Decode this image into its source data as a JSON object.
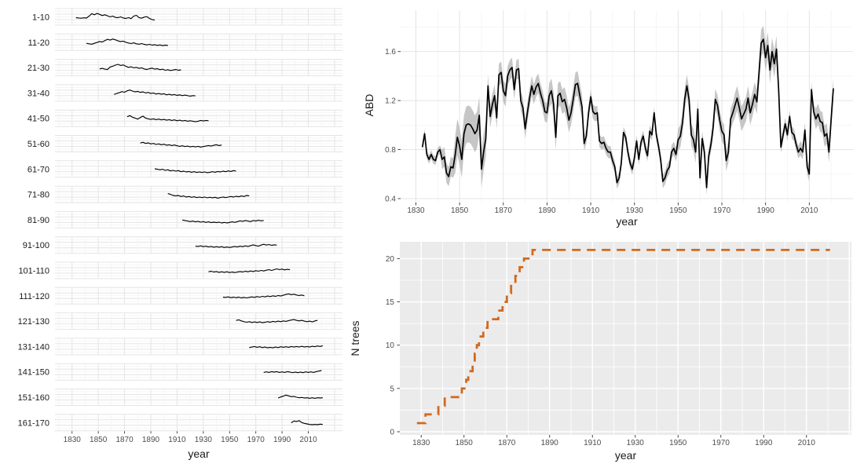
{
  "figure_bg": "#ffffff",
  "palette": {
    "grid_major_on_white": "#e4e4e4",
    "grid_minor_on_white": "#f2f2f2",
    "panel_gray_bg": "#ebebeb",
    "grid_on_gray": "#ffffff",
    "axis_text": "#4d4d4d",
    "tick_mark": "#333333",
    "series_black": "#000000",
    "ribbon_gray": "#b8b8b8",
    "step_orange": "#d2691e"
  },
  "chart_data": [
    {
      "id": "tree-cohort-facets",
      "type": "line",
      "xlabel": "year",
      "x_ticks": [
        1830,
        1850,
        1870,
        1890,
        1910,
        1930,
        1950,
        1970,
        1990,
        2010
      ],
      "x_range": [
        1817,
        2036
      ],
      "facet_labels": [
        "1-10",
        "11-20",
        "21-30",
        "31-40",
        "41-50",
        "51-60",
        "61-70",
        "71-80",
        "81-90",
        "91-100",
        "101-110",
        "111-120",
        "121-130",
        "131-140",
        "141-150",
        "151-160",
        "161-170"
      ],
      "facets": [
        {
          "label": "1-10",
          "start_year": 1833,
          "year_step": 2,
          "values": [
            0.44,
            0.42,
            0.4,
            0.43,
            0.41,
            0.56,
            0.74,
            0.66,
            0.76,
            0.69,
            0.6,
            0.66,
            0.58,
            0.5,
            0.56,
            0.46,
            0.44,
            0.5,
            0.42,
            0.38,
            0.44,
            0.37,
            0.56,
            0.62,
            0.45,
            0.4,
            0.48,
            0.52,
            0.38,
            0.3,
            0.26
          ]
        },
        {
          "label": "11-20",
          "start_year": 1841,
          "year_step": 2,
          "values": [
            0.42,
            0.38,
            0.35,
            0.42,
            0.48,
            0.55,
            0.52,
            0.62,
            0.72,
            0.66,
            0.74,
            0.68,
            0.6,
            0.55,
            0.58,
            0.5,
            0.44,
            0.4,
            0.45,
            0.38,
            0.35,
            0.4,
            0.34,
            0.3,
            0.34,
            0.28,
            0.32,
            0.26,
            0.3,
            0.24,
            0.28,
            0.25
          ]
        },
        {
          "label": "21-30",
          "start_year": 1851,
          "year_step": 2,
          "values": [
            0.4,
            0.44,
            0.38,
            0.35,
            0.55,
            0.6,
            0.68,
            0.74,
            0.66,
            0.7,
            0.6,
            0.52,
            0.56,
            0.48,
            0.52,
            0.44,
            0.48,
            0.4,
            0.36,
            0.42,
            0.46,
            0.38,
            0.42,
            0.34,
            0.38,
            0.3,
            0.34,
            0.28,
            0.32,
            0.36,
            0.3,
            0.33
          ]
        },
        {
          "label": "31-40",
          "start_year": 1862,
          "year_step": 2,
          "values": [
            0.38,
            0.46,
            0.52,
            0.6,
            0.55,
            0.66,
            0.72,
            0.64,
            0.58,
            0.62,
            0.54,
            0.58,
            0.5,
            0.54,
            0.46,
            0.5,
            0.42,
            0.46,
            0.4,
            0.44,
            0.36,
            0.4,
            0.34,
            0.38,
            0.32,
            0.36,
            0.3,
            0.34,
            0.3,
            0.26,
            0.3,
            0.28
          ]
        },
        {
          "label": "41-50",
          "start_year": 1872,
          "year_step": 2,
          "values": [
            0.62,
            0.7,
            0.58,
            0.52,
            0.44,
            0.56,
            0.66,
            0.52,
            0.46,
            0.42,
            0.46,
            0.4,
            0.44,
            0.38,
            0.42,
            0.36,
            0.4,
            0.34,
            0.38,
            0.32,
            0.36,
            0.3,
            0.34,
            0.28,
            0.32,
            0.28,
            0.24,
            0.28,
            0.34,
            0.3,
            0.34,
            0.32
          ]
        },
        {
          "label": "51-60",
          "start_year": 1882,
          "year_step": 2,
          "values": [
            0.55,
            0.6,
            0.52,
            0.56,
            0.48,
            0.52,
            0.44,
            0.48,
            0.42,
            0.46,
            0.38,
            0.42,
            0.36,
            0.4,
            0.34,
            0.3,
            0.34,
            0.28,
            0.32,
            0.26,
            0.3,
            0.26,
            0.3,
            0.24,
            0.28,
            0.32,
            0.36,
            0.32,
            0.38,
            0.42,
            0.36,
            0.4
          ]
        },
        {
          "label": "61-70",
          "start_year": 1893,
          "year_step": 2,
          "values": [
            0.52,
            0.48,
            0.44,
            0.48,
            0.4,
            0.44,
            0.36,
            0.4,
            0.34,
            0.38,
            0.3,
            0.34,
            0.28,
            0.32,
            0.26,
            0.3,
            0.24,
            0.28,
            0.24,
            0.28,
            0.22,
            0.26,
            0.3,
            0.26,
            0.32,
            0.28,
            0.34,
            0.3,
            0.36,
            0.32,
            0.38,
            0.34
          ]
        },
        {
          "label": "71-80",
          "start_year": 1903,
          "year_step": 2,
          "values": [
            0.56,
            0.5,
            0.42,
            0.38,
            0.42,
            0.34,
            0.38,
            0.3,
            0.34,
            0.28,
            0.32,
            0.26,
            0.3,
            0.26,
            0.3,
            0.24,
            0.28,
            0.24,
            0.28,
            0.22,
            0.26,
            0.3,
            0.26,
            0.3,
            0.34,
            0.3,
            0.36,
            0.32,
            0.38,
            0.34,
            0.42,
            0.38
          ]
        },
        {
          "label": "81-90",
          "start_year": 1914,
          "year_step": 2,
          "values": [
            0.48,
            0.44,
            0.4,
            0.36,
            0.4,
            0.34,
            0.38,
            0.32,
            0.36,
            0.3,
            0.34,
            0.28,
            0.32,
            0.28,
            0.32,
            0.26,
            0.3,
            0.26,
            0.3,
            0.34,
            0.3,
            0.36,
            0.42,
            0.38,
            0.44,
            0.4,
            0.36,
            0.44,
            0.4,
            0.46,
            0.42,
            0.44
          ]
        },
        {
          "label": "91-100",
          "start_year": 1924,
          "year_step": 2,
          "values": [
            0.42,
            0.4,
            0.44,
            0.38,
            0.42,
            0.36,
            0.4,
            0.34,
            0.38,
            0.34,
            0.38,
            0.32,
            0.36,
            0.32,
            0.36,
            0.4,
            0.36,
            0.42,
            0.38,
            0.44,
            0.4,
            0.46,
            0.52,
            0.46,
            0.42,
            0.5,
            0.56,
            0.5,
            0.54,
            0.48,
            0.52,
            0.5
          ]
        },
        {
          "label": "101-110",
          "start_year": 1934,
          "year_step": 2,
          "values": [
            0.4,
            0.44,
            0.38,
            0.42,
            0.36,
            0.4,
            0.36,
            0.4,
            0.34,
            0.38,
            0.34,
            0.38,
            0.42,
            0.38,
            0.44,
            0.4,
            0.46,
            0.42,
            0.48,
            0.44,
            0.5,
            0.46,
            0.52,
            0.56,
            0.5,
            0.56,
            0.62,
            0.56,
            0.6,
            0.54,
            0.58,
            0.55
          ]
        },
        {
          "label": "111-120",
          "start_year": 1945,
          "year_step": 2,
          "values": [
            0.4,
            0.38,
            0.42,
            0.36,
            0.4,
            0.36,
            0.4,
            0.34,
            0.38,
            0.34,
            0.38,
            0.42,
            0.38,
            0.44,
            0.4,
            0.46,
            0.42,
            0.48,
            0.44,
            0.5,
            0.46,
            0.52,
            0.48,
            0.54,
            0.6,
            0.64,
            0.58,
            0.62,
            0.56,
            0.52,
            0.56,
            0.5
          ]
        },
        {
          "label": "121-130",
          "start_year": 1955,
          "year_step": 2,
          "values": [
            0.55,
            0.6,
            0.52,
            0.46,
            0.42,
            0.46,
            0.4,
            0.44,
            0.4,
            0.44,
            0.38,
            0.42,
            0.46,
            0.42,
            0.48,
            0.44,
            0.5,
            0.46,
            0.52,
            0.48,
            0.54,
            0.58,
            0.62,
            0.56,
            0.52,
            0.56,
            0.5,
            0.46,
            0.5,
            0.44,
            0.52,
            0.56
          ]
        },
        {
          "label": "131-140",
          "start_year": 1965,
          "year_step": 2,
          "values": [
            0.42,
            0.46,
            0.5,
            0.44,
            0.48,
            0.42,
            0.46,
            0.4,
            0.44,
            0.4,
            0.46,
            0.42,
            0.48,
            0.44,
            0.48,
            0.44,
            0.5,
            0.46,
            0.5,
            0.46,
            0.52,
            0.46,
            0.5,
            0.46,
            0.52,
            0.48,
            0.54,
            0.5,
            0.56
          ]
        },
        {
          "label": "141-150",
          "start_year": 1976,
          "year_step": 2,
          "values": [
            0.46,
            0.5,
            0.46,
            0.52,
            0.48,
            0.52,
            0.46,
            0.5,
            0.46,
            0.52,
            0.48,
            0.44,
            0.48,
            0.44,
            0.48,
            0.44,
            0.5,
            0.46,
            0.5,
            0.46,
            0.52,
            0.56,
            0.6
          ]
        },
        {
          "label": "151-160",
          "start_year": 1987,
          "year_step": 2,
          "values": [
            0.44,
            0.52,
            0.58,
            0.66,
            0.6,
            0.54,
            0.56,
            0.5,
            0.46,
            0.48,
            0.44,
            0.46,
            0.42,
            0.46,
            0.42,
            0.46,
            0.44,
            0.46
          ]
        },
        {
          "label": "161-170",
          "start_year": 1997,
          "year_step": 2,
          "values": [
            0.48,
            0.62,
            0.58,
            0.64,
            0.5,
            0.44,
            0.4,
            0.36,
            0.34,
            0.36,
            0.34,
            0.38,
            0.36
          ]
        }
      ]
    },
    {
      "id": "abd",
      "type": "line",
      "xlabel": "year",
      "ylabel": "ABD",
      "x_ticks": [
        1830,
        1850,
        1870,
        1890,
        1910,
        1930,
        1950,
        1970,
        1990,
        2010
      ],
      "x_range": [
        1823,
        2030
      ],
      "y_ticks": [
        0.4,
        0.8,
        1.2,
        1.6
      ],
      "y_minor": [
        0.6,
        1.0,
        1.4,
        1.8
      ],
      "y_range": [
        0.33,
        1.94
      ],
      "start_year": 1833,
      "values": [
        0.82,
        0.93,
        0.76,
        0.72,
        0.76,
        0.72,
        0.71,
        0.78,
        0.8,
        0.72,
        0.74,
        0.61,
        0.58,
        0.66,
        0.65,
        0.76,
        0.9,
        0.83,
        0.72,
        0.93,
        1.0,
        1.01,
        1.0,
        0.97,
        0.93,
        0.96,
        1.08,
        0.64,
        0.78,
        0.89,
        1.32,
        1.07,
        1.17,
        1.24,
        1.06,
        1.41,
        1.43,
        1.28,
        1.24,
        1.4,
        1.45,
        1.47,
        1.29,
        1.45,
        1.46,
        1.2,
        1.14,
        0.97,
        1.1,
        1.22,
        1.32,
        1.25,
        1.31,
        1.34,
        1.26,
        1.2,
        1.11,
        1.1,
        1.24,
        1.28,
        1.17,
        0.9,
        1.24,
        1.26,
        1.19,
        1.21,
        1.14,
        1.04,
        1.1,
        1.21,
        1.33,
        1.34,
        1.24,
        1.15,
        0.85,
        0.91,
        1.1,
        1.23,
        1.11,
        1.09,
        1.1,
        0.87,
        0.85,
        0.86,
        0.81,
        0.78,
        0.78,
        0.71,
        0.66,
        0.53,
        0.57,
        0.69,
        0.94,
        0.9,
        0.78,
        0.69,
        0.64,
        0.73,
        0.87,
        0.72,
        0.86,
        0.91,
        0.81,
        0.75,
        0.95,
        0.92,
        1.1,
        0.92,
        0.83,
        0.72,
        0.54,
        0.57,
        0.63,
        0.66,
        0.78,
        0.81,
        0.76,
        0.88,
        0.91,
        1.02,
        1.21,
        1.32,
        1.21,
        0.92,
        0.88,
        0.78,
        1.13,
        0.57,
        0.89,
        0.78,
        0.49,
        0.75,
        0.84,
        0.98,
        1.21,
        1.16,
        1.04,
        0.95,
        0.92,
        0.71,
        0.78,
        1.05,
        1.1,
        1.16,
        1.22,
        1.14,
        1.05,
        1.09,
        1.13,
        1.22,
        1.1,
        1.17,
        1.25,
        1.19,
        1.42,
        1.67,
        1.7,
        1.55,
        1.65,
        1.45,
        1.6,
        1.5,
        1.62,
        1.28,
        0.82,
        0.92,
        1.01,
        0.92,
        1.07,
        0.94,
        0.92,
        0.84,
        0.78,
        0.81,
        0.78,
        0.96,
        0.66,
        0.6,
        1.29,
        1.11,
        1.05,
        1.09,
        1.03,
        1.02,
        0.91,
        0.93,
        0.78,
        1.05,
        1.3
      ],
      "ribbon_segments": [
        [
          1833,
          1841,
          0.035
        ],
        [
          1842,
          1847,
          0.08
        ],
        [
          1848,
          1862,
          0.15
        ],
        [
          1863,
          1871,
          0.09
        ],
        [
          1872,
          1890,
          0.08
        ],
        [
          1891,
          1906,
          0.1
        ],
        [
          1907,
          1913,
          0.06
        ],
        [
          1914,
          1924,
          0.05
        ],
        [
          1925,
          1941,
          0.045
        ],
        [
          1942,
          1949,
          0.055
        ],
        [
          1950,
          1959,
          0.09
        ],
        [
          1960,
          1965,
          0.06
        ],
        [
          1966,
          1975,
          0.085
        ],
        [
          1976,
          1987,
          0.1
        ],
        [
          1988,
          1995,
          0.11
        ],
        [
          1996,
          2005,
          0.05
        ],
        [
          2006,
          2012,
          0.06
        ],
        [
          2013,
          2021,
          0.085
        ]
      ],
      "line_color": "#000000",
      "ribbon_color": "#b8b8b8"
    },
    {
      "id": "n-trees",
      "type": "step",
      "xlabel": "year",
      "ylabel": "N trees",
      "x_ticks": [
        1830,
        1850,
        1870,
        1890,
        1910,
        1930,
        1950,
        1970,
        1990,
        2010
      ],
      "x_range": [
        1820,
        2031
      ],
      "y_ticks": [
        0,
        5,
        10,
        15,
        20
      ],
      "y_minor": [
        2.5,
        7.5,
        12.5,
        17.5
      ],
      "y_range": [
        -0.4,
        22.3
      ],
      "step_years": [
        1828,
        1832,
        1838,
        1841,
        1849,
        1851,
        1852,
        1854,
        1855,
        1856,
        1857,
        1859,
        1861,
        1866,
        1868,
        1870,
        1872,
        1874,
        1876,
        1878,
        1882
      ],
      "step_counts": [
        1,
        2,
        3,
        4,
        5,
        6,
        7,
        8,
        9,
        10,
        11,
        12,
        13,
        14,
        15,
        16,
        17,
        18,
        19,
        20,
        21
      ],
      "end_year": 2021,
      "plateau_value": 21,
      "line_color": "#d2691e",
      "dash": [
        11,
        8
      ],
      "panel_bg": "#ebebeb"
    }
  ]
}
